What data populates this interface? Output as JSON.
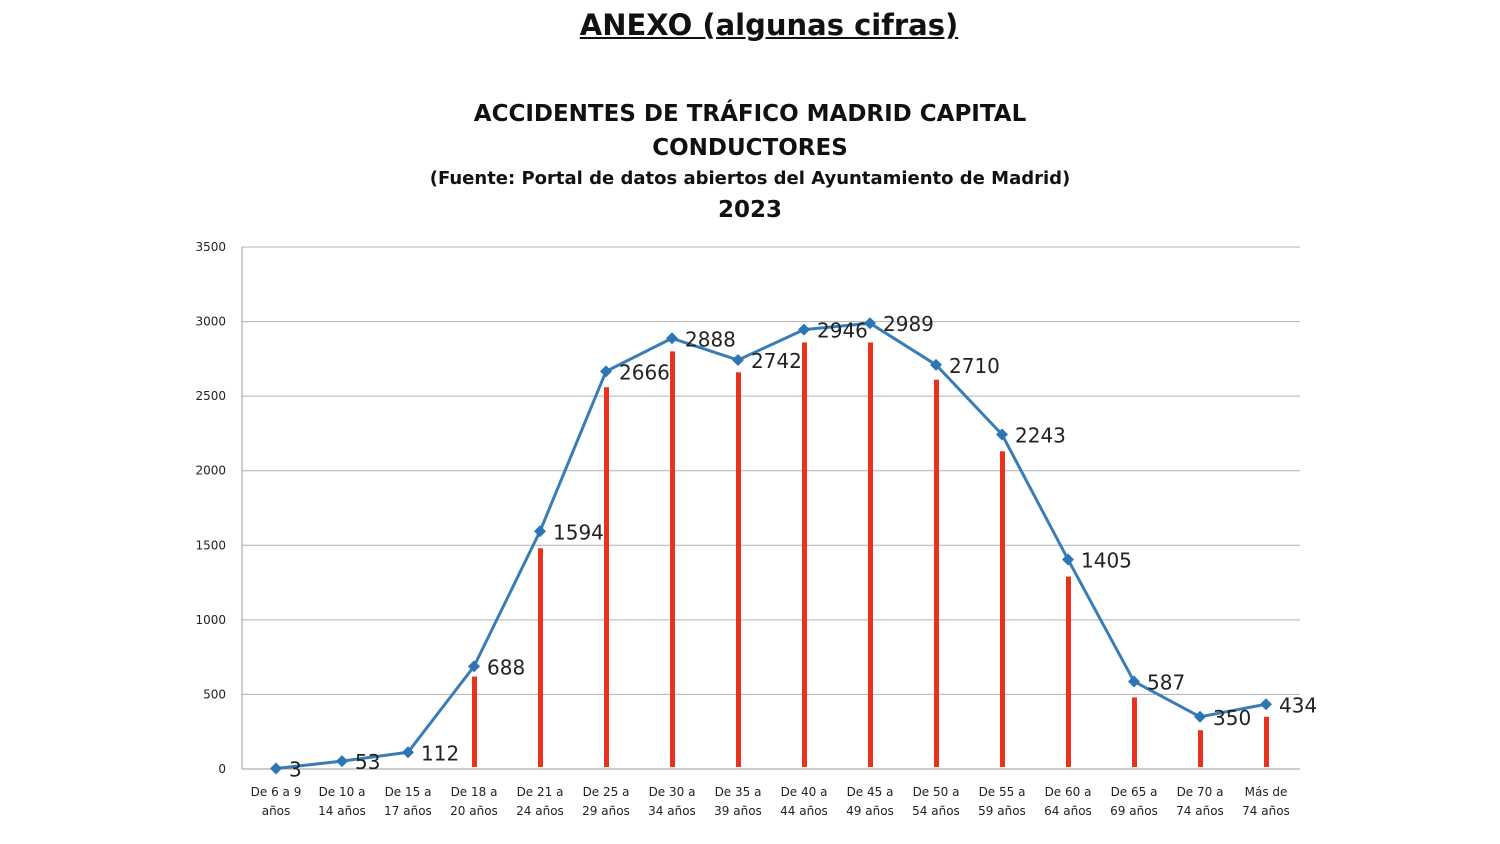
{
  "page": {
    "title": "ANEXO (algunas cifras)"
  },
  "chart_data": {
    "type": "line",
    "title_lines": [
      "ACCIDENTES DE TRÁFICO MADRID CAPITAL",
      "CONDUCTORES",
      "(Fuente: Portal de datos abiertos del Ayuntamiento de Madrid)",
      "2023"
    ],
    "categories": [
      [
        "De 6 a 9",
        "años"
      ],
      [
        "De 10 a",
        "14 años"
      ],
      [
        "De 15 a",
        "17 años"
      ],
      [
        "De 18 a",
        "20 años"
      ],
      [
        "De 21 a",
        "24 años"
      ],
      [
        "De 25 a",
        "29 años"
      ],
      [
        "De 30 a",
        "34 años"
      ],
      [
        "De 35 a",
        "39 años"
      ],
      [
        "De 40 a",
        "44 años"
      ],
      [
        "De 45 a",
        "49 años"
      ],
      [
        "De 50 a",
        "54 años"
      ],
      [
        "De 55 a",
        "59 años"
      ],
      [
        "De 60 a",
        "64 años"
      ],
      [
        "De 65 a",
        "69 años"
      ],
      [
        "De 70 a",
        "74 años"
      ],
      [
        "Más de",
        "74 años"
      ]
    ],
    "values": [
      3,
      53,
      112,
      688,
      1594,
      2666,
      2888,
      2742,
      2946,
      2989,
      2710,
      2243,
      1405,
      587,
      350,
      434
    ],
    "bar_values": [
      null,
      null,
      null,
      620,
      1480,
      2560,
      2800,
      2660,
      2860,
      2860,
      2610,
      2130,
      1290,
      480,
      260,
      350
    ],
    "yticks": [
      0,
      500,
      1000,
      1500,
      2000,
      2500,
      3000,
      3500
    ],
    "ylim": [
      0,
      3500
    ],
    "grid": true,
    "colors": {
      "line": "#3a7db5",
      "marker": "#2e75b6",
      "bar": "#e8321e",
      "grid": "#b0b0b0",
      "axis": "#999999",
      "text": "#222222"
    }
  }
}
